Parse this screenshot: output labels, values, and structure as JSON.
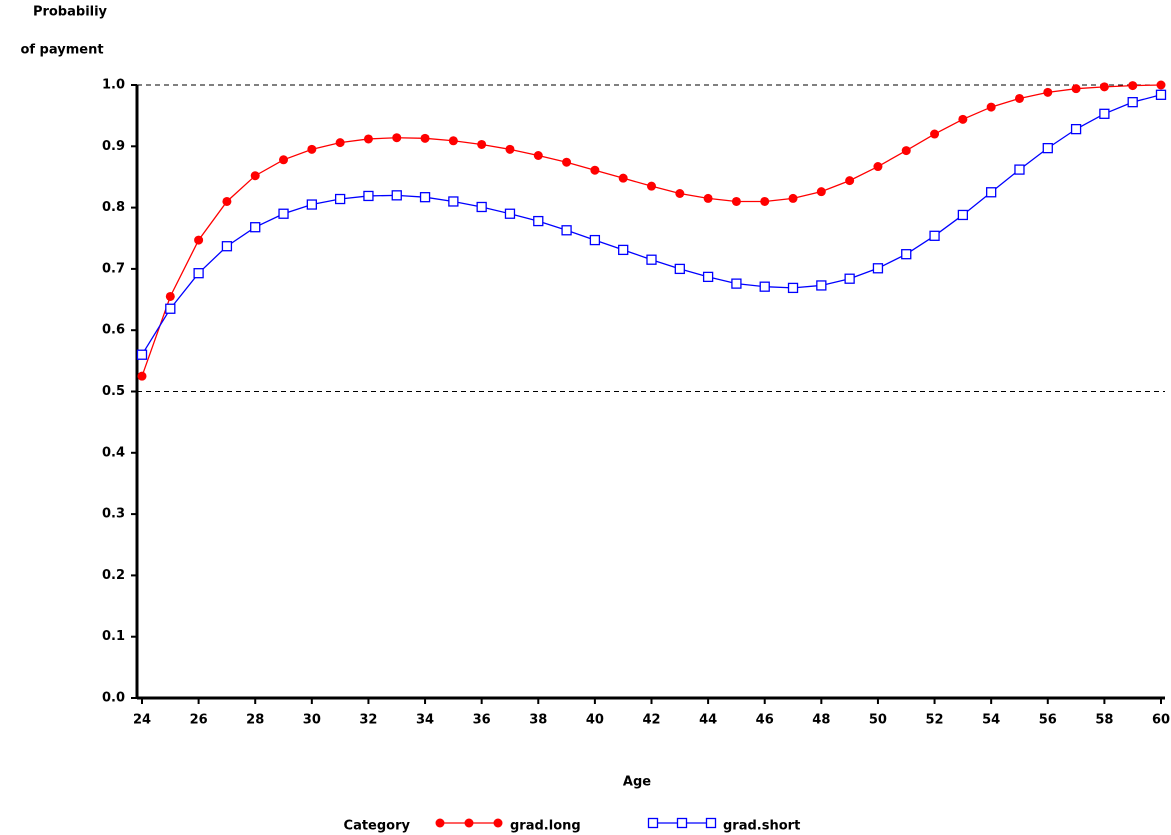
{
  "chart_data": {
    "type": "line",
    "x_label": "Age",
    "y_label": [
      "Probabiliy",
      "of payment"
    ],
    "legend_title": "Category",
    "x": [
      24,
      25,
      26,
      27,
      28,
      29,
      30,
      31,
      32,
      33,
      34,
      35,
      36,
      37,
      38,
      39,
      40,
      41,
      42,
      43,
      44,
      45,
      46,
      47,
      48,
      49,
      50,
      51,
      52,
      53,
      54,
      55,
      56,
      57,
      58,
      59,
      60
    ],
    "series": [
      {
        "name": "grad.long",
        "color": "#ff0000",
        "marker": "filled-circle",
        "values": [
          0.525,
          0.655,
          0.747,
          0.81,
          0.852,
          0.878,
          0.895,
          0.906,
          0.912,
          0.914,
          0.913,
          0.909,
          0.903,
          0.895,
          0.885,
          0.874,
          0.861,
          0.848,
          0.835,
          0.823,
          0.815,
          0.81,
          0.81,
          0.815,
          0.826,
          0.844,
          0.867,
          0.893,
          0.92,
          0.944,
          0.964,
          0.978,
          0.988,
          0.994,
          0.997,
          0.999,
          1.0
        ]
      },
      {
        "name": "grad.short",
        "color": "#0000ff",
        "marker": "open-square",
        "values": [
          0.56,
          0.635,
          0.693,
          0.737,
          0.768,
          0.79,
          0.805,
          0.814,
          0.819,
          0.82,
          0.817,
          0.81,
          0.801,
          0.79,
          0.778,
          0.763,
          0.747,
          0.731,
          0.715,
          0.7,
          0.687,
          0.676,
          0.671,
          0.669,
          0.673,
          0.684,
          0.701,
          0.724,
          0.754,
          0.788,
          0.825,
          0.862,
          0.897,
          0.928,
          0.953,
          0.972,
          0.984
        ]
      }
    ],
    "xlim": [
      23.8,
      60
    ],
    "xticks": [
      24,
      26,
      28,
      30,
      32,
      34,
      36,
      38,
      40,
      42,
      44,
      46,
      48,
      50,
      52,
      54,
      56,
      58,
      60
    ],
    "ylim": [
      0,
      1
    ],
    "yticks": [
      {
        "value": 0,
        "label": "0.0"
      },
      0.1,
      0.2,
      0.3,
      0.4,
      0.5,
      0.6,
      0.7,
      0.8,
      0.9,
      {
        "value": 1,
        "label": "1.0"
      }
    ],
    "reference_lines": [
      0.5,
      1.0
    ]
  }
}
